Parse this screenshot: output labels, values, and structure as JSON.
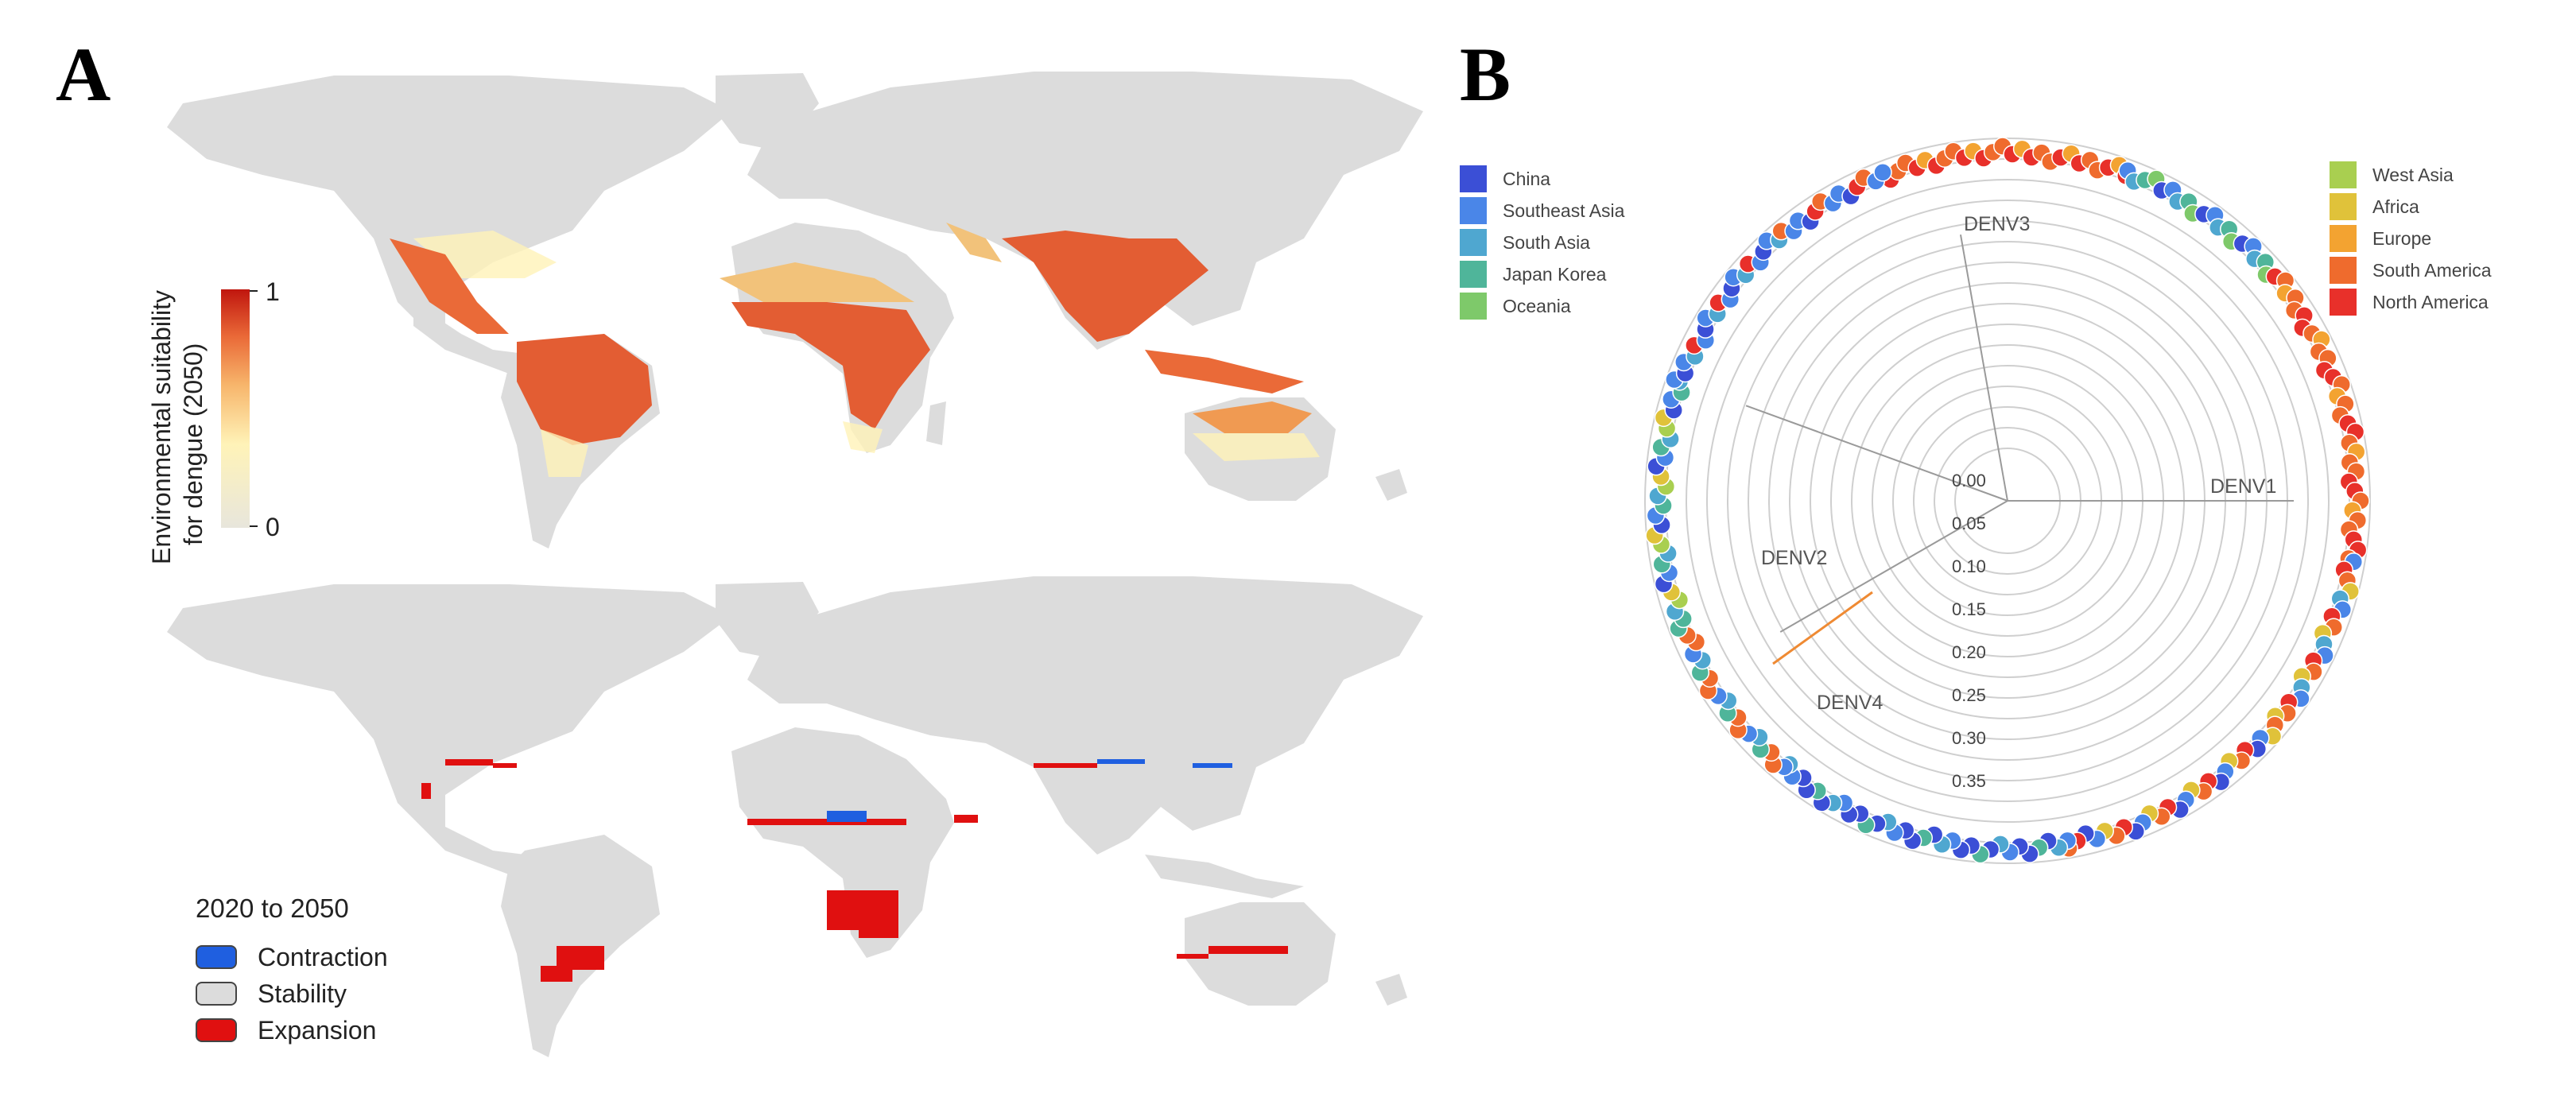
{
  "panel_a": {
    "letter": "A",
    "colorbar": {
      "title_line1": "Environmental suitability",
      "title_line2": "for dengue (2050)",
      "max_label": "1",
      "min_label": "0",
      "colors": [
        "#e8e6dc",
        "#fff3b8",
        "#f7b56b",
        "#ea6a38",
        "#c0160e"
      ]
    },
    "change_legend": {
      "title": "2020 to 2050",
      "items": [
        {
          "label": "Contraction",
          "color": "#1f5fe0"
        },
        {
          "label": "Stability",
          "color": "#dcdcdc"
        },
        {
          "label": "Expansion",
          "color": "#e01010"
        }
      ]
    }
  },
  "panel_b": {
    "letter": "B",
    "legend_left": [
      {
        "label": "China",
        "color": "#3b4fd6"
      },
      {
        "label": "Southeast Asia",
        "color": "#4a86e8"
      },
      {
        "label": "South Asia",
        "color": "#4fa7d0"
      },
      {
        "label": "Japan Korea",
        "color": "#4fb59a"
      },
      {
        "label": "Oceania",
        "color": "#7ec96a"
      }
    ],
    "legend_right": [
      {
        "label": "West Asia",
        "color": "#a9cf50"
      },
      {
        "label": "Africa",
        "color": "#e0c23a"
      },
      {
        "label": "Europe",
        "color": "#f3a331"
      },
      {
        "label": "South America",
        "color": "#ef6b2d"
      },
      {
        "label": "North America",
        "color": "#e8302a"
      }
    ],
    "clades": {
      "denv1": "DENV1",
      "denv2": "DENV2",
      "denv3": "DENV3",
      "denv4": "DENV4"
    },
    "scale_labels": [
      "0.00",
      "0.05",
      "0.10",
      "0.15",
      "0.20",
      "0.25",
      "0.30",
      "0.35"
    ]
  }
}
